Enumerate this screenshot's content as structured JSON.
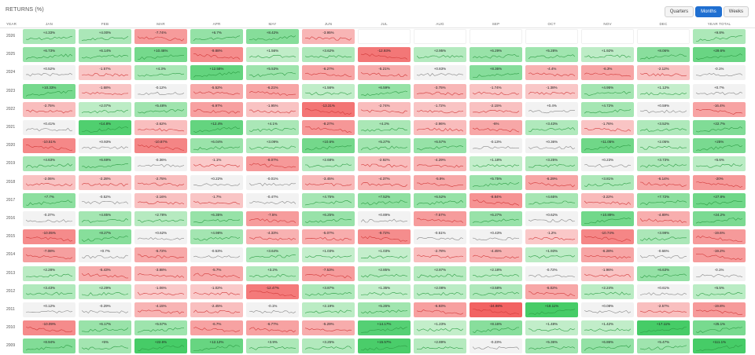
{
  "header": {
    "title": "RETURNS (%)",
    "tabs": [
      {
        "label": "Quarters",
        "active": false
      },
      {
        "label": "Months",
        "active": true
      },
      {
        "label": "Weeks",
        "active": false
      }
    ]
  },
  "columns": [
    "YEAR",
    "JAN",
    "FEB",
    "MAR",
    "APR",
    "MAY",
    "JUN",
    "JUL",
    "AUG",
    "SEP",
    "OCT",
    "NOV",
    "DEC",
    "YEAR TOTAL"
  ],
  "rows": [
    {
      "year": "2026",
      "values": [
        "+4.33%",
        "+4.00%",
        "-7.74%",
        "+6.7%",
        "+8.42%",
        "-3.95%",
        null,
        null,
        null,
        null,
        null,
        null,
        "+9.8%"
      ]
    },
    {
      "year": "2025",
      "values": [
        "+6.73%",
        "+6.14%",
        "+10.46%",
        "-9.88%",
        "+1.56%",
        "+3.62%",
        "-12.93%",
        "+2.95%",
        "+6.29%",
        "+5.28%",
        "+1.92%",
        "+8.06%",
        "+29.6%"
      ]
    },
    {
      "year": "2024",
      "values": [
        "+0.52%",
        "-1.57%",
        "+4.3%",
        "+12.58%",
        "+5.53%",
        "-6.27%",
        "-5.21%",
        "+0.83%",
        "+8.36%",
        "-4.4%",
        "-6.3%",
        "-2.12%",
        "-0.1%"
      ]
    },
    {
      "year": "2023",
      "values": [
        "+10.33%",
        "-1.68%",
        "-0.12%",
        "-5.52%",
        "-6.21%",
        "+1.56%",
        "+6.59%",
        "-3.75%",
        "-1.74%",
        "-1.38%",
        "+4.95%",
        "+1.12%",
        "+0.7%"
      ]
    },
    {
      "year": "2022",
      "values": [
        "-2.75%",
        "+2.07%",
        "+5.48%",
        "-6.97%",
        "-1.95%",
        "-13.31%",
        "-2.74%",
        "-1.72%",
        "-2.15%",
        "+0.4%",
        "+4.72%",
        "+0.59%",
        "-16.4%"
      ]
    },
    {
      "year": "2021",
      "values": [
        "+0.41%",
        "+14.8%",
        "-2.62%",
        "+12.4%",
        "+4.1%",
        "-8.27%",
        "+4.2%",
        "-2.96%",
        "-6%",
        "+3.43%",
        "-1.76%",
        "+3.52%",
        "+22.7%"
      ]
    },
    {
      "year": "2020",
      "values": [
        "-10.51%",
        "+0.93%",
        "-10.87%",
        "+6.04%",
        "+3.09%",
        "+10.6%",
        "+5.27%",
        "+6.57%",
        "-0.13%",
        "+0.36%",
        "+11.05%",
        "+2.05%",
        "+25%"
      ]
    },
    {
      "year": "2019",
      "values": [
        "+4.63%",
        "+6.69%",
        "-0.36%",
        "-1.1%",
        "-8.07%",
        "+2.68%",
        "-2.92%",
        "-4.29%",
        "+1.18%",
        "+3.25%",
        "+0.23%",
        "+3.73%",
        "+5.6%"
      ]
    },
    {
      "year": "2018",
      "values": [
        "-2.06%",
        "-2.28%",
        "-2.75%",
        "+0.22%",
        "-0.01%",
        "-3.45%",
        "-4.37%",
        "-5.9%",
        "+5.75%",
        "-6.29%",
        "+3.81%",
        "-6.14%",
        "-20%"
      ]
    },
    {
      "year": "2017",
      "values": [
        "+7.7%",
        "-0.52%",
        "-2.16%",
        "-1.7%",
        "-0.47%",
        "+4.75%",
        "+7.52%",
        "+6.52%",
        "-8.84%",
        "+4.65%",
        "-3.22%",
        "+7.72%",
        "+27.8%"
      ]
    },
    {
      "year": "2016",
      "values": [
        "-0.37%",
        "+4.85%",
        "+2.78%",
        "+6.35%",
        "-7.5%",
        "+6.25%",
        "+0.89%",
        "-7.57%",
        "+6.27%",
        "+0.62%",
        "+10.89%",
        "-4.89%",
        "+24.2%"
      ]
    },
    {
      "year": "2015",
      "values": [
        "-10.05%",
        "+8.27%",
        "+0.62%",
        "+4.98%",
        "-4.33%",
        "-5.07%",
        "-9.72%",
        "-0.51%",
        "+0.43%",
        "-1.2%",
        "-10.74%",
        "+3.99%",
        "-19.6%"
      ]
    },
    {
      "year": "2014",
      "values": [
        "-7.08%",
        "+0.7%",
        "-5.72%",
        "-0.53%",
        "+3.64%",
        "+1.03%",
        "+1.03%",
        "-2.78%",
        "-4.45%",
        "+1.93%",
        "-6.28%",
        "-0.66%",
        "-19.2%"
      ]
    },
    {
      "year": "2013",
      "values": [
        "+2.28%",
        "-5.43%",
        "-3.88%",
        "-5.7%",
        "+3.2%",
        "-7.53%",
        "+2.85%",
        "+2.87%",
        "+2.18%",
        "-0.72%",
        "-1.96%",
        "+6.63%",
        "-0.1%"
      ]
    },
    {
      "year": "2012",
      "values": [
        "+3.43%",
        "+2.29%",
        "-1.06%",
        "-1.02%",
        "-12.47%",
        "+3.87%",
        "+1.35%",
        "+2.08%",
        "+3.58%",
        "-6.02%",
        "+2.24%",
        "+0.61%",
        "+5.5%"
      ]
    },
    {
      "year": "2011",
      "values": [
        "+0.12%",
        "-0.29%",
        "-4.15%",
        "-2.45%",
        "-0.1%",
        "+2.19%",
        "+5.26%",
        "-6.93%",
        "-24.98%",
        "+18.11%",
        "+0.08%",
        "-2.57%",
        "-19.8%"
      ]
    },
    {
      "year": "2010",
      "values": [
        "-10.09%",
        "+6.17%",
        "+5.57%",
        "-6.7%",
        "-6.77%",
        "-5.29%",
        "+14.17%",
        "+1.23%",
        "+8.16%",
        "+1.48%",
        "+1.42%",
        "+17.11%",
        "+25.1%"
      ]
    },
    {
      "year": "2009",
      "values": [
        "+8.94%",
        "+5%",
        "+22.6%",
        "+12.12%",
        "+3.9%",
        "+3.25%",
        "+15.57%",
        "+2.89%",
        "-0.23%",
        "+5.36%",
        "+6.86%",
        "+5.47%",
        "+111.1%"
      ]
    }
  ],
  "colors": {
    "positive": "#34c759",
    "negative": "#f04a4a",
    "neutral": "#f2f2f2",
    "accent": "#1f6fd1"
  }
}
